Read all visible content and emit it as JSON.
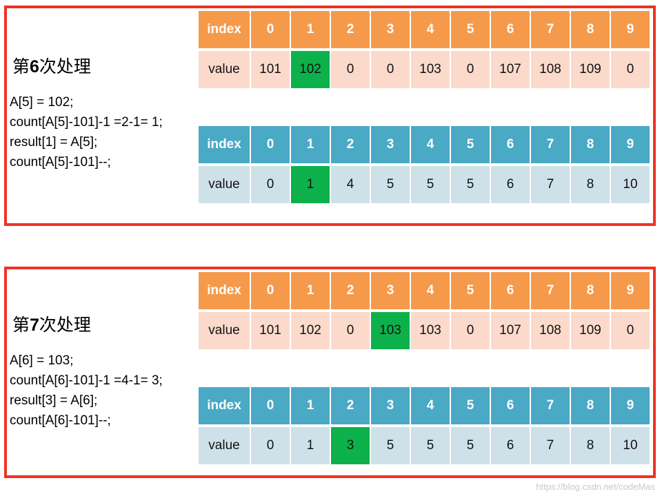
{
  "panels": [
    {
      "title_prefix": "第",
      "title_num": "6",
      "title_suffix": "次处理",
      "code": [
        "A[5] = 102;",
        "count[A[5]-101]-1 =2-1= 1;",
        "result[1] = A[5];",
        "count[A[5]-101]--;"
      ],
      "arrays": [
        {
          "color": "orange",
          "index_label": "index",
          "indices": [
            "0",
            "1",
            "2",
            "3",
            "4",
            "5",
            "6",
            "7",
            "8",
            "9"
          ],
          "value_label": "value",
          "values": [
            "101",
            "102",
            "0",
            "0",
            "103",
            "0",
            "107",
            "108",
            "109",
            "0"
          ],
          "highlight": 1
        },
        {
          "color": "blue",
          "index_label": "index",
          "indices": [
            "0",
            "1",
            "2",
            "3",
            "4",
            "5",
            "6",
            "7",
            "8",
            "9"
          ],
          "value_label": "value",
          "values": [
            "0",
            "1",
            "4",
            "5",
            "5",
            "5",
            "6",
            "7",
            "8",
            "10"
          ],
          "highlight": 1
        }
      ]
    },
    {
      "title_prefix": "第",
      "title_num": "7",
      "title_suffix": "次处理",
      "code": [
        "A[6] = 103;",
        "count[A[6]-101]-1 =4-1= 3;",
        "result[3] = A[6];",
        "count[A[6]-101]--;"
      ],
      "arrays": [
        {
          "color": "orange",
          "index_label": "index",
          "indices": [
            "0",
            "1",
            "2",
            "3",
            "4",
            "5",
            "6",
            "7",
            "8",
            "9"
          ],
          "value_label": "value",
          "values": [
            "101",
            "102",
            "0",
            "103",
            "103",
            "0",
            "107",
            "108",
            "109",
            "0"
          ],
          "highlight": 3
        },
        {
          "color": "blue",
          "index_label": "index",
          "indices": [
            "0",
            "1",
            "2",
            "3",
            "4",
            "5",
            "6",
            "7",
            "8",
            "9"
          ],
          "value_label": "value",
          "values": [
            "0",
            "1",
            "3",
            "5",
            "5",
            "5",
            "6",
            "7",
            "8",
            "10"
          ],
          "highlight": 2
        }
      ]
    }
  ],
  "watermark": "https://blog.csdn.net/codeMas",
  "colors": {
    "border": "#ee3322",
    "orange_header": "#f59a4b",
    "orange_value": "#fbdacc",
    "blue_header": "#4aa9c5",
    "blue_value": "#cfe1e8",
    "highlight": "#0db14b"
  }
}
